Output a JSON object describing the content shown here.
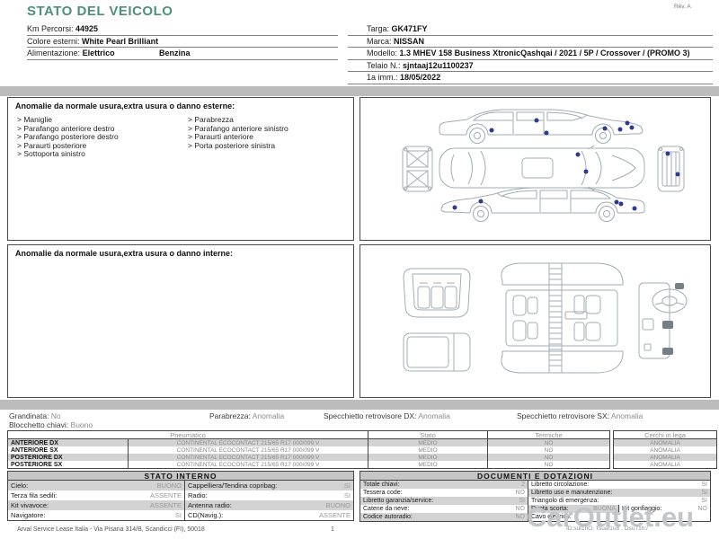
{
  "page": {
    "title": "STATO DEL VEICOLO",
    "rev": "Rev. A",
    "page_number": "1",
    "footer": "Arval Service Lease Italia - Via Pisana 314/B, Scandicci (FI), 50018",
    "watermark": "CarOutlet.eu",
    "doc_id": "ID:suf1hO. Tsuaf1u8 , Osu71h:/",
    "title_color": "#4f8f7d",
    "marker_color": "#2c3a92"
  },
  "vehicle": {
    "left": [
      {
        "label": "Km Percorsi:",
        "value": "44925"
      },
      {
        "label": "Colore esterni:",
        "value": "White Pearl Brilliant"
      },
      {
        "label": "Alimentazione:",
        "value": "Elettrico",
        "value2": "Benzina"
      }
    ],
    "right": [
      {
        "label": "Targa:",
        "value": "GK471FY"
      },
      {
        "label": "Marca:",
        "value": "NISSAN"
      },
      {
        "label": "Modello:",
        "value": "1.3 MHEV 158 Business XtronicQashqai / 2021 / 5P / Crossover / (PROMO 3)"
      },
      {
        "label": "Telaio N.:",
        "value": "sjntaaj12u1100237"
      },
      {
        "label": "1a imm.:",
        "value": "18/05/2022"
      }
    ]
  },
  "exterior": {
    "header": "Anomalie da normale usura,extra usura o danno esterne:",
    "col1": [
      "Maniglie",
      "Parafango anteriore destro",
      "Parafango posteriore destro",
      "Paraurti posteriore",
      "Sottoporta sinistro"
    ],
    "col2": [
      "Parabrezza",
      "Parafango anteriore sinistro",
      "Paraurti anteriore",
      "Porta posteriore sinistra"
    ],
    "markers": [
      {
        "x": 37.5,
        "y": 23.0
      },
      {
        "x": 50.5,
        "y": 16.1
      },
      {
        "x": 53.3,
        "y": 24.8
      },
      {
        "x": 69.9,
        "y": 21.7
      },
      {
        "x": 74.2,
        "y": 22.4
      },
      {
        "x": 76.3,
        "y": 18.0
      },
      {
        "x": 77.6,
        "y": 21.1
      },
      {
        "x": 62.2,
        "y": 39.8
      },
      {
        "x": 64.5,
        "y": 52.2
      },
      {
        "x": 87.8,
        "y": 39.1
      },
      {
        "x": 90.8,
        "y": 54.0
      },
      {
        "x": 27.0,
        "y": 77.0
      },
      {
        "x": 34.4,
        "y": 72.7
      },
      {
        "x": 73.2,
        "y": 73.3
      },
      {
        "x": 74.5,
        "y": 74.5
      },
      {
        "x": 78.3,
        "y": 77.6
      }
    ]
  },
  "interior": {
    "header": "Anomalie da normale usura,extra usura o danno interne:"
  },
  "summary": {
    "grandinata_label": "Grandinata:",
    "grandinata_value": "No",
    "parabrezza_label": "Parabrezza:",
    "parabrezza_value": "Anomalia",
    "specchietto_dx_label": "Specchietto retrovisore DX:",
    "specchietto_dx_value": "Anomalia",
    "specchietto_sx_label": "Specchietto retrovisore SX:",
    "specchietto_sx_value": "Anomalia",
    "blocchetto_label": "Blocchetto chiavi:",
    "blocchetto_value": "Buono"
  },
  "tyres": {
    "headers": {
      "pneumatico": "Pneumatico",
      "stato": "Stato",
      "termiche": "Termiche",
      "cerchi": "Cerchi in lega"
    },
    "rows": [
      {
        "position": "ANTERIORE DX",
        "tyre": "CONTINENTAL ECOCONTACT 215/65 R17 000/099 V",
        "stato": "MEDIO",
        "termiche": "NO",
        "cerchi": "ANOMALIA"
      },
      {
        "position": "ANTERIORE SX",
        "tyre": "CONTINENTAL ECOCONTACT 215/65 R17 000/099 V",
        "stato": "MEDIO",
        "termiche": "NO",
        "cerchi": "ANOMALIA"
      },
      {
        "position": "POSTERIORE DX",
        "tyre": "CONTINENTAL ECOCONTACT 215/65 R17 000/099 V",
        "stato": "MEDIO",
        "termiche": "NO",
        "cerchi": "ANOMALIA"
      },
      {
        "position": "POSTERIORE SX",
        "tyre": "CONTINENTAL ECOCONTACT 215/65 R17 000/099 V",
        "stato": "MEDIO",
        "termiche": "NO",
        "cerchi": "ANOMALIA"
      }
    ]
  },
  "stato_interno": {
    "title": "STATO INTERNO",
    "rows": [
      {
        "l_label": "Cielo:",
        "l_value": "BUONO",
        "r_label": "Cappelliera/Tendina copribag:",
        "r_value": "SI"
      },
      {
        "l_label": "Terza fila sedili:",
        "l_value": "ASSENTE",
        "r_label": "Radio:",
        "r_value": "SI"
      },
      {
        "l_label": "Kit vivavoce:",
        "l_value": "ASSENTE",
        "r_label": "Antenna radio:",
        "r_value": "BUONO"
      },
      {
        "l_label": "Navigatore:",
        "l_value": "SI",
        "r_label": "CD(Navig.):",
        "r_value": "ASSENTE"
      }
    ]
  },
  "documenti": {
    "title": "DOCUMENTI E DOTAZIONI",
    "rows": [
      {
        "l_label": "Totale chiavi:",
        "l_value": "2",
        "r_label": "Libretto circolazione:",
        "r_value": "SI"
      },
      {
        "l_label": "Tessera code:",
        "l_value": "NO",
        "r_label": "Libretto uso e manutenzione:",
        "r_value": "SI"
      },
      {
        "l_label": "Libretto garanzia/service:",
        "l_value": "SI",
        "r_label": "Triangolo di emergenza:",
        "r_value": "SI"
      },
      {
        "l_label": "Catene da neve:",
        "l_value": "NO",
        "r_label": "Ruota scorta:",
        "r_value": "BUONA",
        "r2_label": "Kit gonfiaggio:",
        "r2_value": "NO"
      },
      {
        "l_label": "Codice autoradio:",
        "l_value": "NO",
        "r_label": "Cavo elettrico:",
        "r_value": ""
      }
    ]
  }
}
